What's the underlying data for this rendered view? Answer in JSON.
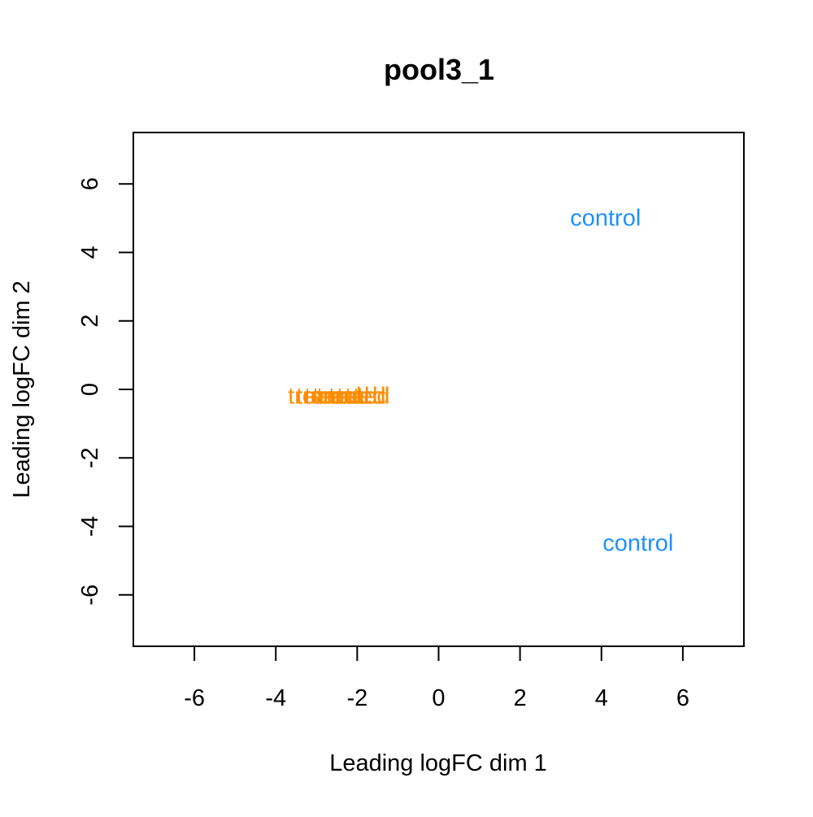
{
  "chart_data": {
    "type": "scatter",
    "title": "pool3_1",
    "xlabel": "Leading logFC dim 1",
    "ylabel": "Leading logFC dim 2",
    "xlim": [
      -7.5,
      7.5
    ],
    "ylim": [
      -7.5,
      7.5
    ],
    "xticks": [
      -6,
      -4,
      -2,
      0,
      2,
      4,
      6
    ],
    "yticks": [
      -6,
      -4,
      -2,
      0,
      2,
      4,
      6
    ],
    "grid": false,
    "legend": "none",
    "groups": [
      {
        "name": "control",
        "color": "#1E90FF"
      },
      {
        "name": "treated",
        "color": "#FF8C00"
      }
    ],
    "points": [
      {
        "label": "control",
        "group": "control",
        "x": 4.1,
        "y": 5.0
      },
      {
        "label": "control",
        "group": "control",
        "x": 4.9,
        "y": -4.5
      },
      {
        "label": "treated",
        "group": "treated",
        "x": -2.8,
        "y": -0.2
      },
      {
        "label": "treated",
        "group": "treated",
        "x": -2.6,
        "y": -0.2
      },
      {
        "label": "treated",
        "group": "treated",
        "x": -2.4,
        "y": -0.2
      },
      {
        "label": "treated",
        "group": "treated",
        "x": -2.2,
        "y": -0.2
      },
      {
        "label": "treated",
        "group": "treated",
        "x": -2.1,
        "y": -0.2
      }
    ]
  }
}
